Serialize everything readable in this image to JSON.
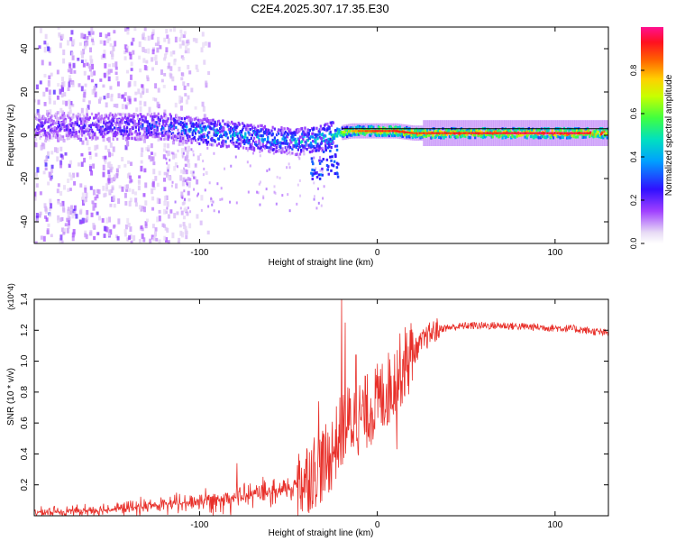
{
  "title": "C2E4.2025.307.17.35.E30",
  "colors": {
    "snr_line": "#e8302a",
    "axis": "#000000",
    "ref_line": "#000000"
  },
  "chart_data": [
    {
      "type": "heatmap",
      "name": "spectrogram",
      "xlabel": "Height of straight line (km)",
      "ylabel": "Frequency (Hz)",
      "xlim": [
        -193,
        130
      ],
      "ylim": [
        -50,
        50
      ],
      "xticks": [
        "-100",
        "0",
        "100"
      ],
      "xtick_values": [
        -100,
        0,
        100
      ],
      "yticks": [
        "-40",
        "-20",
        "0",
        "20",
        "40"
      ],
      "ytick_values": [
        -40,
        -20,
        0,
        20,
        40
      ],
      "reference_line_hz": 3,
      "colorbar": {
        "label": "Normalized spectral amplitude",
        "range": [
          0,
          1
        ],
        "ticks": [
          "0.0",
          "0.2",
          "0.4",
          "0.6",
          "0.8"
        ],
        "tick_values": [
          0.0,
          0.2,
          0.4,
          0.6,
          0.8
        ]
      },
      "ridge": {
        "x": [
          -193,
          -150,
          -120,
          -100,
          -80,
          -60,
          -45,
          -35,
          -28,
          -22,
          -15,
          -10,
          0,
          10,
          20,
          40,
          60,
          80,
          100,
          120,
          130
        ],
        "freq": [
          4,
          4,
          4,
          2,
          0,
          -2,
          -3,
          -2,
          0,
          1,
          2,
          2,
          2,
          2,
          1,
          1,
          1,
          1,
          1,
          1,
          1
        ],
        "amplitude": [
          0.25,
          0.3,
          0.35,
          0.45,
          0.45,
          0.45,
          0.45,
          0.5,
          0.55,
          0.7,
          0.75,
          0.85,
          0.9,
          0.9,
          0.88,
          0.9,
          0.92,
          0.95,
          0.95,
          0.92,
          0.9
        ]
      }
    },
    {
      "type": "line",
      "name": "snr",
      "xlabel": "Height of straight line (km)",
      "ylabel": "SNR (10 * v/v)",
      "y_multiplier": "(x10^4)",
      "xlim": [
        -193,
        130
      ],
      "ylim": [
        0,
        1.4
      ],
      "xticks": [
        "-100",
        "0",
        "100"
      ],
      "xtick_values": [
        -100,
        0,
        100
      ],
      "yticks": [
        "0.2",
        "0.4",
        "0.6",
        "0.8",
        "1.0",
        "1.2",
        "1.4"
      ],
      "ytick_values": [
        0.2,
        0.4,
        0.6,
        0.8,
        1.0,
        1.2,
        1.4
      ],
      "trend": {
        "x": [
          -193,
          -170,
          -150,
          -130,
          -110,
          -90,
          -70,
          -55,
          -45,
          -35,
          -28,
          -22,
          -18,
          -12,
          -5,
          0,
          5,
          10,
          15,
          20,
          25,
          30,
          35,
          50,
          70,
          90,
          110,
          130
        ],
        "y": [
          0.02,
          0.03,
          0.04,
          0.06,
          0.08,
          0.11,
          0.13,
          0.15,
          0.2,
          0.3,
          0.35,
          0.5,
          0.6,
          0.62,
          0.68,
          0.74,
          0.8,
          0.88,
          0.98,
          1.05,
          1.12,
          1.18,
          1.21,
          1.23,
          1.23,
          1.22,
          1.21,
          1.18
        ]
      },
      "spikes": [
        {
          "x": -79,
          "y": 0.34
        },
        {
          "x": -33,
          "y": 0.74
        },
        {
          "x": -20,
          "y": 1.42
        },
        {
          "x": -18,
          "y": 1.25
        },
        {
          "x": -12,
          "y": 1.04
        },
        {
          "x": 11,
          "y": 0.43
        }
      ]
    }
  ]
}
